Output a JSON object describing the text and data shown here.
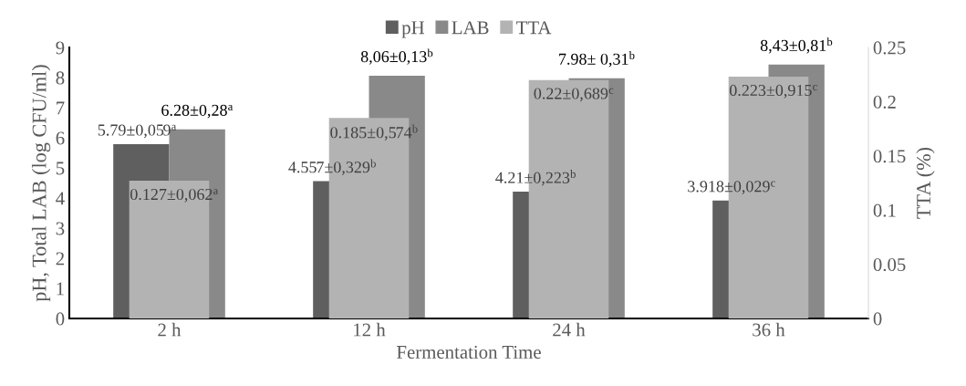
{
  "chart_data": {
    "type": "bar",
    "xlabel": "Fermentation Time",
    "ylabel": "pH, Total LAB (log CFU/ml)",
    "y2label": "TTA (%)",
    "categories": [
      "2 h",
      "12 h",
      "24 h",
      "36 h"
    ],
    "series": [
      {
        "name": "pH",
        "color": "#5f5f5f",
        "values": [
          5.79,
          4.557,
          4.21,
          3.918
        ],
        "value_labels": [
          "5.79±0,059$^{a}$",
          "4.557±0,329$^{b}$",
          "4.21±0,223$^{b}$",
          "3.918±0,029$^{c}$"
        ]
      },
      {
        "name": "LAB",
        "color": "#898989",
        "values": [
          6.28,
          8.06,
          7.98,
          8.43
        ],
        "value_labels": [
          "6.28±0,28$^{a}$",
          "8,06±0,13$^{b}$",
          "7.98± 0,31$^{b}$",
          "8,43±0,81$^{b}$"
        ]
      },
      {
        "name": "TTA",
        "color": "#b3b3b3",
        "axis": "y2",
        "values": [
          0.127,
          0.185,
          0.22,
          0.223
        ],
        "value_labels": [
          "0.127±0,062$^{a}$",
          "0.185±0,574$^{b}$",
          "0.22±0,689$^{c}$",
          "0.223±0,915$^{c}$"
        ]
      }
    ],
    "ylim": [
      0,
      9
    ],
    "yticks": [
      0,
      1,
      2,
      3,
      4,
      5,
      6,
      7,
      8,
      9
    ],
    "y2lim": [
      0,
      0.25
    ],
    "y2ticks": [
      0,
      0.05,
      0.1,
      0.15,
      0.2,
      0.25
    ],
    "grid": false,
    "legend": "top"
  }
}
